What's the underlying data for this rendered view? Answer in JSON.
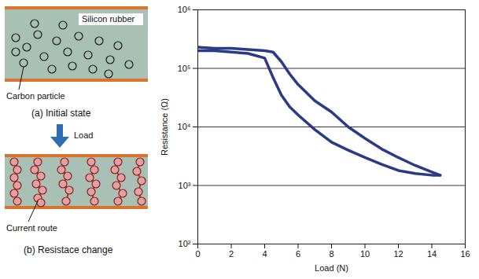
{
  "diagram": {
    "initial": {
      "caption": "(a) Initial state",
      "matrix_label": "Silicon rubber",
      "particle_label": "Carbon particle"
    },
    "arrow_label": "Load",
    "loaded": {
      "caption": "(b) Resistace change",
      "route_label": "Current route"
    }
  },
  "chart_data": {
    "type": "line",
    "x_label": "Load (N)",
    "y_label": "Resistance (Ω)",
    "x": [
      0,
      1,
      2,
      3,
      4,
      4.5,
      5,
      5.5,
      6,
      7,
      8,
      9,
      10,
      11,
      12,
      13,
      14,
      14.5
    ],
    "series": [
      {
        "color": "#2b3a86",
        "values": [
          200000,
          200000,
          190000,
          180000,
          150000,
          70000,
          35000,
          22000,
          16000,
          9000,
          5500,
          4000,
          3000,
          2300,
          1800,
          1600,
          1500,
          1500
        ]
      },
      {
        "color": "#2b3a86",
        "values": [
          230000,
          220000,
          220000,
          210000,
          200000,
          190000,
          130000,
          80000,
          53000,
          28000,
          18000,
          10000,
          6400,
          4200,
          3000,
          2200,
          1700,
          1500
        ]
      }
    ],
    "xlim": [
      0,
      16
    ],
    "xticks": [
      0,
      2,
      4,
      6,
      8,
      10,
      12,
      14,
      16
    ],
    "ylim": [
      100,
      1000000
    ],
    "yticks": [
      {
        "value": 100,
        "label": "10²"
      },
      {
        "value": 1000,
        "label": "10³"
      },
      {
        "value": 10000,
        "label": "10⁴"
      },
      {
        "value": 100000,
        "label": "10⁵"
      },
      {
        "value": 1000000,
        "label": "10⁶"
      }
    ],
    "log": "y",
    "grid": "y"
  }
}
